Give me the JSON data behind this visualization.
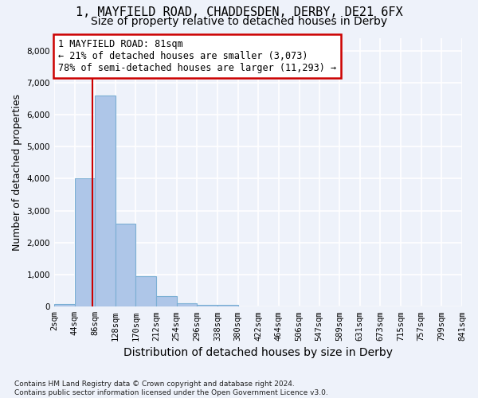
{
  "title1": "1, MAYFIELD ROAD, CHADDESDEN, DERBY, DE21 6FX",
  "title2": "Size of property relative to detached houses in Derby",
  "xlabel": "Distribution of detached houses by size in Derby",
  "ylabel": "Number of detached properties",
  "footnote": "Contains HM Land Registry data © Crown copyright and database right 2024.\nContains public sector information licensed under the Open Government Licence v3.0.",
  "bar_edges": [
    2,
    44,
    86,
    128,
    170,
    212,
    254,
    296,
    338,
    380,
    422,
    464,
    506,
    547,
    589,
    631,
    673,
    715,
    757,
    799,
    841
  ],
  "bar_heights": [
    75,
    4000,
    6600,
    2600,
    950,
    330,
    100,
    60,
    50,
    0,
    0,
    0,
    0,
    0,
    0,
    0,
    0,
    0,
    0,
    0
  ],
  "bar_color": "#aec6e8",
  "bar_edge_color": "#7bafd4",
  "vline_x": 81,
  "vline_color": "#cc0000",
  "annotation_text": "1 MAYFIELD ROAD: 81sqm\n← 21% of detached houses are smaller (3,073)\n78% of semi-detached houses are larger (11,293) →",
  "annotation_box_color": "#ffffff",
  "annotation_box_edge": "#cc0000",
  "ylim": [
    0,
    8400
  ],
  "yticks": [
    0,
    1000,
    2000,
    3000,
    4000,
    5000,
    6000,
    7000,
    8000
  ],
  "bg_color": "#eef2fa",
  "plot_bg_color": "#eef2fa",
  "grid_color": "#ffffff",
  "title1_fontsize": 11,
  "title2_fontsize": 10,
  "xlabel_fontsize": 10,
  "ylabel_fontsize": 9,
  "tick_fontsize": 7.5,
  "annot_fontsize": 8.5
}
